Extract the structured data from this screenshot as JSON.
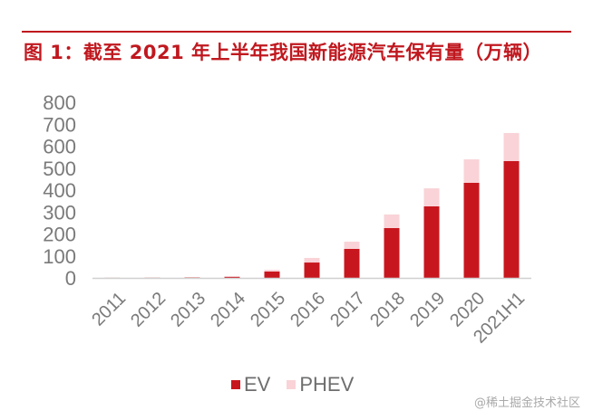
{
  "header": {
    "title": "图 1：截至 2021 年上半年我国新能源汽车保有量（万辆）"
  },
  "colors": {
    "accent": "#c0181f",
    "ev": "#c8161e",
    "phev": "#f9d3d7",
    "axis": "#d0d0d0",
    "label": "#7a7a7a"
  },
  "chart_data": {
    "type": "bar",
    "stacked": true,
    "title": "图 1：截至 2021 年上半年我国新能源汽车保有量（万辆）",
    "xlabel": "",
    "ylabel": "",
    "ylim": [
      0,
      800
    ],
    "yticks": [
      0,
      100,
      200,
      300,
      400,
      500,
      600,
      700,
      800
    ],
    "grid": false,
    "legend_position": "bottom",
    "categories": [
      "2011",
      "2012",
      "2013",
      "2014",
      "2015",
      "2016",
      "2017",
      "2018",
      "2019",
      "2020",
      "2021H1"
    ],
    "series": [
      {
        "name": "EV",
        "color": "#c8161e",
        "values": [
          0.5,
          1,
          2,
          5,
          29,
          70,
          132,
          227,
          326,
          433,
          532
        ]
      },
      {
        "name": "PHEV",
        "color": "#f9d3d7",
        "values": [
          0.3,
          0.5,
          1,
          3,
          8,
          21,
          33,
          62,
          82,
          107,
          128
        ]
      }
    ]
  },
  "legend": {
    "items": [
      {
        "label": "EV",
        "color": "#c8161e"
      },
      {
        "label": "PHEV",
        "color": "#f9d3d7"
      }
    ]
  },
  "watermark": "@稀土掘金技术社区"
}
